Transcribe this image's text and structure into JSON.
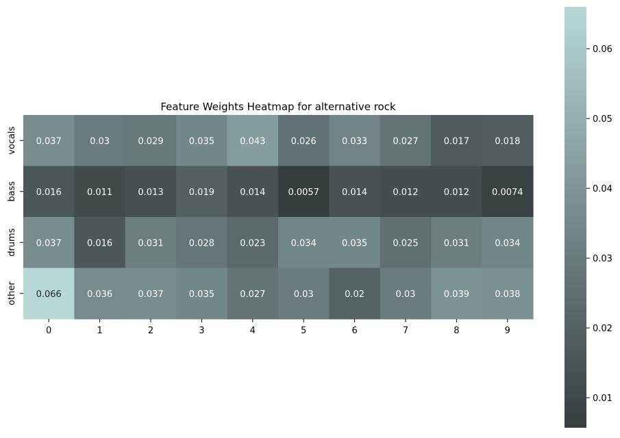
{
  "chart_data": {
    "type": "heatmap",
    "title": "Feature Weights Heatmap for alternative rock",
    "xlabel": "",
    "ylabel": "",
    "x_categories": [
      "0",
      "1",
      "2",
      "3",
      "4",
      "5",
      "6",
      "7",
      "8",
      "9"
    ],
    "y_categories": [
      "vocals",
      "bass",
      "drums",
      "other"
    ],
    "values": [
      [
        0.037,
        0.03,
        0.029,
        0.035,
        0.043,
        0.026,
        0.033,
        0.027,
        0.017,
        0.018
      ],
      [
        0.016,
        0.011,
        0.013,
        0.019,
        0.014,
        0.0057,
        0.014,
        0.012,
        0.012,
        0.0074
      ],
      [
        0.037,
        0.016,
        0.031,
        0.028,
        0.023,
        0.034,
        0.035,
        0.025,
        0.031,
        0.034
      ],
      [
        0.066,
        0.036,
        0.037,
        0.035,
        0.027,
        0.03,
        0.02,
        0.03,
        0.039,
        0.038
      ]
    ],
    "value_labels": [
      [
        "0.037",
        "0.03",
        "0.029",
        "0.035",
        "0.043",
        "0.026",
        "0.033",
        "0.027",
        "0.017",
        "0.018"
      ],
      [
        "0.016",
        "0.011",
        "0.013",
        "0.019",
        "0.014",
        "0.0057",
        "0.014",
        "0.012",
        "0.012",
        "0.0074"
      ],
      [
        "0.037",
        "0.016",
        "0.031",
        "0.028",
        "0.023",
        "0.034",
        "0.035",
        "0.025",
        "0.031",
        "0.034"
      ],
      [
        "0.066",
        "0.036",
        "0.037",
        "0.035",
        "0.027",
        "0.03",
        "0.02",
        "0.03",
        "0.039",
        "0.038"
      ]
    ],
    "colorbar": {
      "vmin": 0.0057,
      "vmax": 0.066,
      "ticks": [
        0.01,
        0.02,
        0.03,
        0.04,
        0.05,
        0.06
      ],
      "tick_labels": [
        "0.01",
        "0.02",
        "0.03",
        "0.04",
        "0.05",
        "0.06"
      ],
      "color_low": "#363d3f",
      "color_high": "#b8d8d8"
    },
    "annotation_colors": {
      "on_dark": "#ffffff",
      "on_light": "#262626"
    },
    "grid": false,
    "legend": "colorbar-right"
  }
}
